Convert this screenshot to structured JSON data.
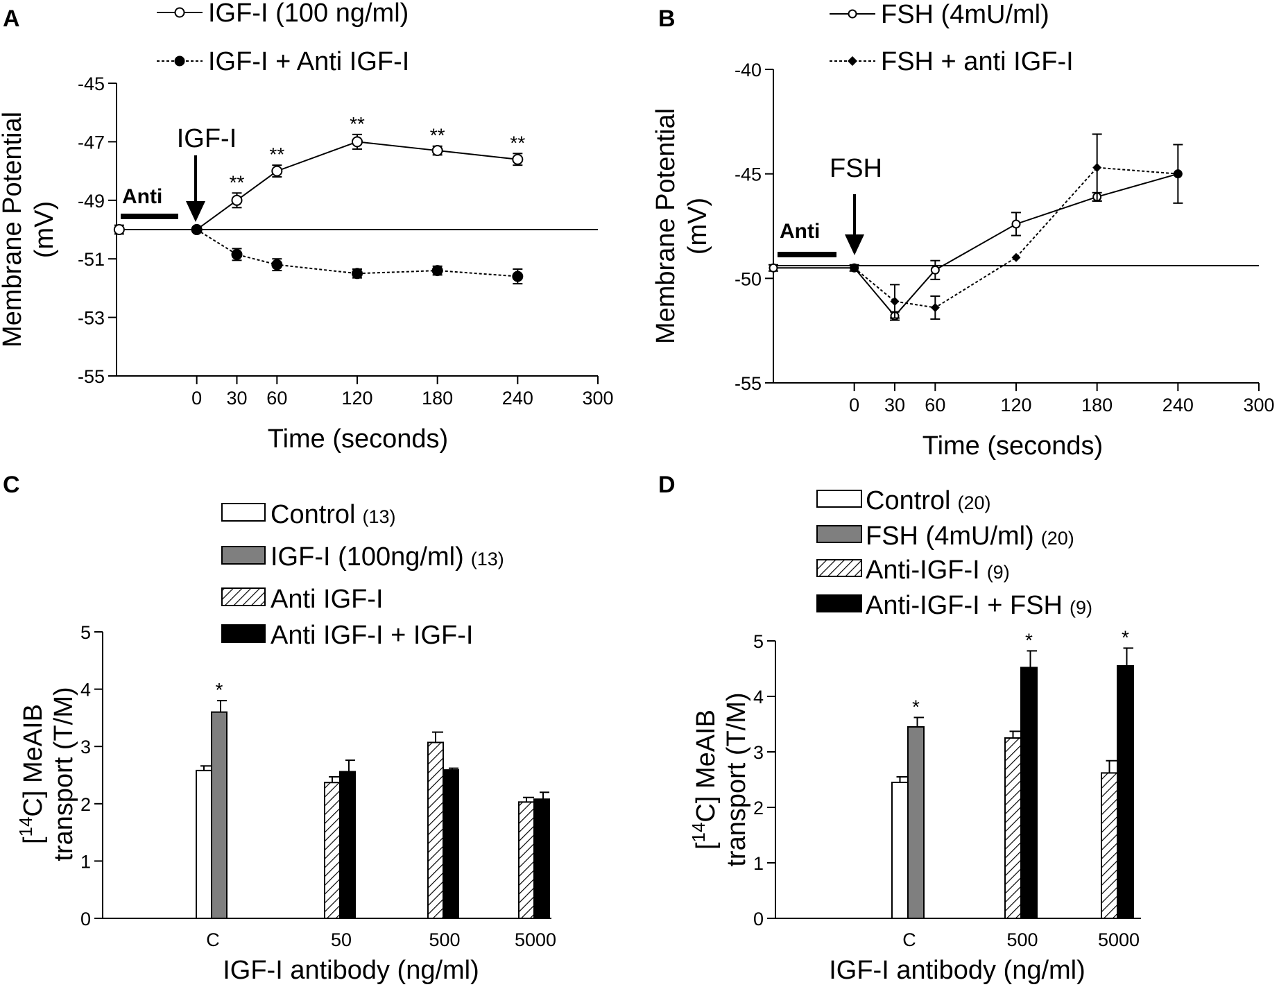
{
  "figure": {
    "panel_letters": [
      "A",
      "B",
      "C",
      "D"
    ]
  },
  "chart_data": [
    {
      "panel": "A",
      "type": "line",
      "xlabel": "Time (seconds)",
      "ylabel": [
        "Membrane Potential",
        "(mV)"
      ],
      "xlim": [
        -60,
        300
      ],
      "ylim": [
        -55,
        -45
      ],
      "xticks": [
        0,
        30,
        60,
        120,
        180,
        240,
        300
      ],
      "yticks": [
        -55,
        -53,
        -51,
        -49,
        -47,
        -45
      ],
      "baseline": -50,
      "annotations": {
        "anti": "Anti",
        "arrow": "IGF-I",
        "significance": "**"
      },
      "series": [
        {
          "name": "IGF-I (100 ng/ml)",
          "marker": "open-circle",
          "style": "solid",
          "x": [
            -58,
            0,
            30,
            60,
            120,
            180,
            240
          ],
          "y": [
            -50.0,
            -50.0,
            -49.0,
            -48.0,
            -47.0,
            -47.3,
            -47.6
          ],
          "err": [
            0.15,
            0.0,
            0.25,
            0.2,
            0.25,
            0.15,
            0.2
          ],
          "significant": [
            false,
            false,
            true,
            true,
            true,
            true,
            true
          ]
        },
        {
          "name": "IGF-I + Anti IGF-I",
          "marker": "filled-circle",
          "style": "dashed",
          "x": [
            0,
            30,
            60,
            120,
            180,
            240
          ],
          "y": [
            -50.0,
            -50.85,
            -51.2,
            -51.5,
            -51.4,
            -51.6
          ],
          "err": [
            0.0,
            0.2,
            0.2,
            0.15,
            0.15,
            0.25
          ]
        }
      ]
    },
    {
      "panel": "B",
      "type": "line",
      "xlabel": "Time (seconds)",
      "ylabel": [
        "Membrane Potential",
        "(mV)"
      ],
      "xlim": [
        -60,
        300
      ],
      "ylim": [
        -55,
        -40
      ],
      "xticks": [
        0,
        30,
        60,
        120,
        180,
        240,
        300
      ],
      "yticks": [
        -55,
        -50,
        -45,
        -40
      ],
      "baseline": -49.5,
      "annotations": {
        "anti": "Anti",
        "arrow": "FSH"
      },
      "series": [
        {
          "name": "FSH (4mU/ml)",
          "marker": "open-circle",
          "style": "solid",
          "x": [
            -60,
            0,
            30,
            60,
            120,
            180,
            240
          ],
          "y": [
            -49.5,
            -49.5,
            -51.8,
            -49.6,
            -47.4,
            -46.1,
            -45.0
          ],
          "err": [
            0.15,
            0.15,
            0.2,
            0.45,
            0.55,
            0.2,
            1.4
          ]
        },
        {
          "name": "FSH + anti IGF-I",
          "marker": "filled-diamond",
          "style": "dashed",
          "x": [
            0,
            30,
            60,
            120,
            180,
            240
          ],
          "y": [
            -49.5,
            -51.1,
            -51.4,
            -49.0,
            -44.7,
            -45.0
          ],
          "err": [
            0.0,
            0.8,
            0.55,
            0.0,
            1.6,
            0.0
          ]
        }
      ]
    },
    {
      "panel": "C",
      "type": "bar",
      "xlabel": "IGF-I antibody (ng/ml)",
      "ylabel": [
        "[14C] MeAIB",
        "transport (T/M)"
      ],
      "ylim": [
        0,
        5
      ],
      "yticks": [
        0,
        1,
        2,
        3,
        4,
        5
      ],
      "categories": [
        "C",
        "50",
        "500",
        "5000"
      ],
      "series": [
        {
          "name": "Control",
          "n": "(13)",
          "fill": "white",
          "values": [
            2.58,
            null,
            null,
            null
          ],
          "err": [
            0.08,
            null,
            null,
            null
          ],
          "sig": [
            false,
            false,
            false,
            false
          ]
        },
        {
          "name": "IGF-I (100ng/ml)",
          "n": "(13)",
          "fill": "gray",
          "values": [
            3.6,
            null,
            null,
            null
          ],
          "err": [
            0.2,
            null,
            null,
            null
          ],
          "sig": [
            true,
            false,
            false,
            false
          ]
        },
        {
          "name": "Anti IGF-I",
          "n": "",
          "fill": "hatch",
          "values": [
            null,
            2.37,
            3.07,
            2.03
          ],
          "err": [
            null,
            0.1,
            0.18,
            0.08
          ],
          "sig": [
            false,
            false,
            false,
            false
          ]
        },
        {
          "name": "Anti IGF-I + IGF-I",
          "n": "",
          "fill": "black",
          "values": [
            null,
            2.56,
            2.59,
            2.08
          ],
          "err": [
            null,
            0.2,
            0.03,
            0.12
          ],
          "sig": [
            false,
            false,
            false,
            false
          ]
        }
      ]
    },
    {
      "panel": "D",
      "type": "bar",
      "xlabel": "IGF-I antibody (ng/ml)",
      "ylabel": [
        "[14C] MeAIB",
        "transport (T/M)"
      ],
      "ylim": [
        0,
        5
      ],
      "yticks": [
        0,
        1,
        2,
        3,
        4,
        5
      ],
      "categories": [
        "C",
        "500",
        "5000"
      ],
      "series": [
        {
          "name": "Control",
          "n": "(20)",
          "fill": "white",
          "values": [
            2.45,
            null,
            null
          ],
          "err": [
            0.1,
            null,
            null
          ],
          "sig": [
            false,
            false,
            false
          ]
        },
        {
          "name": "FSH (4mU/ml)",
          "n": "(20)",
          "fill": "gray",
          "values": [
            3.45,
            null,
            null
          ],
          "err": [
            0.17,
            null,
            null
          ],
          "sig": [
            true,
            false,
            false
          ]
        },
        {
          "name": "Anti-IGF-I",
          "n": "(9)",
          "fill": "hatch",
          "values": [
            null,
            3.25,
            2.62
          ],
          "err": [
            null,
            0.12,
            0.22
          ],
          "sig": [
            false,
            false,
            false
          ]
        },
        {
          "name": "Anti-IGF-I + FSH",
          "n": "(9)",
          "fill": "black",
          "values": [
            null,
            4.52,
            4.55
          ],
          "err": [
            null,
            0.3,
            0.32
          ],
          "sig": [
            false,
            true,
            true
          ]
        }
      ]
    }
  ]
}
